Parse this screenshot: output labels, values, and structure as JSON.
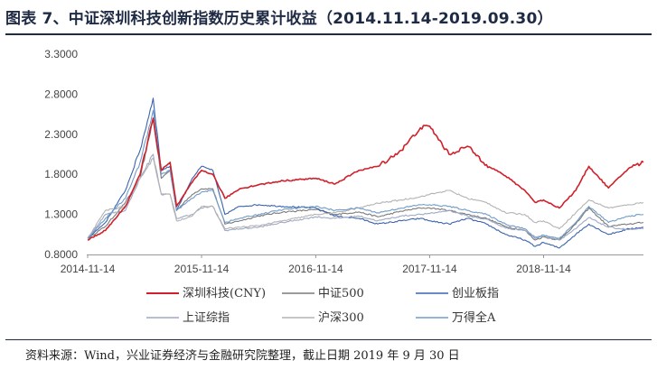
{
  "header": {
    "title": "图表 7、中证深圳科技创新指数历史累计收益（2014.11.14-2019.09.30）"
  },
  "footer": {
    "source": "资料来源：Wind，兴业证券经济与金融研究院整理，截止日期 2019 年 9 月 30 日"
  },
  "chart_data": {
    "type": "line",
    "x_range": [
      "2014-11-14",
      "2019-09-30"
    ],
    "x_ticks": [
      "2014-11-14",
      "2015-11-14",
      "2016-11-14",
      "2017-11-14",
      "2018-11-14"
    ],
    "y_ticks": [
      "3.3000",
      "2.8000",
      "2.3000",
      "1.8000",
      "1.3000",
      "0.8000"
    ],
    "ylim": [
      0.8,
      3.3
    ],
    "legend_position": "bottom",
    "grid": false,
    "series": [
      {
        "name": "深圳科技(CNY)",
        "color": "#d0202a",
        "x": [
          "2014-11-14",
          "2015-01-10",
          "2015-03-15",
          "2015-05-01",
          "2015-06-12",
          "2015-07-08",
          "2015-08-05",
          "2015-08-26",
          "2015-10-15",
          "2015-11-14",
          "2015-12-20",
          "2016-01-28",
          "2016-03-15",
          "2016-05-15",
          "2016-08-01",
          "2016-11-14",
          "2017-01-15",
          "2017-04-01",
          "2017-06-01",
          "2017-08-15",
          "2017-10-15",
          "2017-11-14",
          "2018-01-15",
          "2018-03-15",
          "2018-05-15",
          "2018-07-15",
          "2018-09-15",
          "2018-10-18",
          "2018-11-14",
          "2019-01-03",
          "2019-02-25",
          "2019-04-08",
          "2019-06-10",
          "2019-08-15",
          "2019-09-30"
        ],
        "values": [
          0.98,
          1.1,
          1.4,
          1.8,
          2.5,
          1.85,
          1.95,
          1.4,
          1.7,
          1.85,
          1.8,
          1.5,
          1.62,
          1.67,
          1.72,
          1.75,
          1.68,
          1.85,
          1.9,
          2.1,
          2.38,
          2.4,
          2.05,
          2.15,
          1.92,
          1.78,
          1.6,
          1.45,
          1.48,
          1.38,
          1.6,
          1.9,
          1.63,
          1.88,
          1.95
        ]
      },
      {
        "name": "中证500",
        "color": "#7a7a7a",
        "x": [
          "2014-11-14",
          "2015-01-10",
          "2015-03-15",
          "2015-05-01",
          "2015-06-12",
          "2015-07-08",
          "2015-08-05",
          "2015-08-26",
          "2015-10-15",
          "2015-11-14",
          "2015-12-20",
          "2016-01-28",
          "2016-03-15",
          "2016-05-15",
          "2016-08-01",
          "2016-11-14",
          "2017-01-15",
          "2017-04-01",
          "2017-06-01",
          "2017-08-15",
          "2017-10-15",
          "2017-11-14",
          "2018-01-15",
          "2018-03-15",
          "2018-05-15",
          "2018-07-15",
          "2018-09-15",
          "2018-10-18",
          "2018-11-14",
          "2019-01-03",
          "2019-02-25",
          "2019-04-08",
          "2019-06-10",
          "2019-08-15",
          "2019-09-30"
        ],
        "values": [
          1.0,
          1.15,
          1.45,
          1.75,
          2.5,
          1.75,
          1.85,
          1.35,
          1.55,
          1.62,
          1.62,
          1.18,
          1.22,
          1.28,
          1.33,
          1.36,
          1.3,
          1.33,
          1.27,
          1.34,
          1.38,
          1.38,
          1.35,
          1.3,
          1.25,
          1.15,
          1.1,
          0.98,
          1.02,
          0.98,
          1.18,
          1.38,
          1.15,
          1.18,
          1.2
        ]
      },
      {
        "name": "创业板指",
        "color": "#3a63b0",
        "x": [
          "2014-11-14",
          "2015-01-10",
          "2015-03-15",
          "2015-05-01",
          "2015-06-12",
          "2015-07-08",
          "2015-08-05",
          "2015-08-26",
          "2015-10-15",
          "2015-11-14",
          "2015-12-20",
          "2016-01-28",
          "2016-03-15",
          "2016-05-15",
          "2016-08-01",
          "2016-11-14",
          "2017-01-15",
          "2017-04-01",
          "2017-06-01",
          "2017-08-15",
          "2017-10-15",
          "2017-11-14",
          "2018-01-15",
          "2018-03-15",
          "2018-05-15",
          "2018-07-15",
          "2018-09-15",
          "2018-10-18",
          "2018-11-14",
          "2019-01-03",
          "2019-02-25",
          "2019-04-08",
          "2019-06-10",
          "2019-08-15",
          "2019-09-30"
        ],
        "values": [
          1.0,
          1.2,
          1.6,
          2.1,
          2.75,
          1.85,
          1.9,
          1.35,
          1.75,
          1.9,
          1.85,
          1.3,
          1.4,
          1.42,
          1.4,
          1.38,
          1.28,
          1.25,
          1.18,
          1.22,
          1.25,
          1.22,
          1.18,
          1.25,
          1.18,
          1.05,
          0.98,
          0.9,
          0.95,
          0.88,
          1.05,
          1.18,
          1.05,
          1.12,
          1.14
        ]
      },
      {
        "name": "上证综指",
        "color": "#9fa9c4",
        "x": [
          "2014-11-14",
          "2015-01-10",
          "2015-03-15",
          "2015-05-01",
          "2015-06-12",
          "2015-07-08",
          "2015-08-05",
          "2015-08-26",
          "2015-10-15",
          "2015-11-14",
          "2015-12-20",
          "2016-01-28",
          "2016-03-15",
          "2016-05-15",
          "2016-08-01",
          "2016-11-14",
          "2017-01-15",
          "2017-04-01",
          "2017-06-01",
          "2017-08-15",
          "2017-10-15",
          "2017-11-14",
          "2018-01-15",
          "2018-03-15",
          "2018-05-15",
          "2018-07-15",
          "2018-09-15",
          "2018-10-18",
          "2018-11-14",
          "2019-01-03",
          "2019-02-25",
          "2019-04-08",
          "2019-06-10",
          "2019-08-15",
          "2019-09-30"
        ],
        "values": [
          1.0,
          1.3,
          1.35,
          1.75,
          2.05,
          1.55,
          1.55,
          1.25,
          1.3,
          1.38,
          1.4,
          1.1,
          1.12,
          1.14,
          1.2,
          1.27,
          1.25,
          1.28,
          1.22,
          1.28,
          1.3,
          1.31,
          1.35,
          1.28,
          1.24,
          1.13,
          1.1,
          1.02,
          1.04,
          0.98,
          1.12,
          1.26,
          1.14,
          1.11,
          1.12
        ]
      },
      {
        "name": "沪深300",
        "color": "#b3b3b3",
        "x": [
          "2014-11-14",
          "2015-01-10",
          "2015-03-15",
          "2015-05-01",
          "2015-06-12",
          "2015-07-08",
          "2015-08-05",
          "2015-08-26",
          "2015-10-15",
          "2015-11-14",
          "2015-12-20",
          "2016-01-28",
          "2016-03-15",
          "2016-05-15",
          "2016-08-01",
          "2016-11-14",
          "2017-01-15",
          "2017-04-01",
          "2017-06-01",
          "2017-08-15",
          "2017-10-15",
          "2017-11-14",
          "2018-01-15",
          "2018-03-15",
          "2018-05-15",
          "2018-07-15",
          "2018-09-15",
          "2018-10-18",
          "2018-11-14",
          "2019-01-03",
          "2019-02-25",
          "2019-04-08",
          "2019-06-10",
          "2019-08-15",
          "2019-09-30"
        ],
        "values": [
          1.0,
          1.35,
          1.4,
          1.75,
          2.0,
          1.55,
          1.55,
          1.22,
          1.28,
          1.4,
          1.4,
          1.12,
          1.14,
          1.16,
          1.22,
          1.3,
          1.32,
          1.38,
          1.44,
          1.48,
          1.52,
          1.55,
          1.6,
          1.5,
          1.45,
          1.32,
          1.3,
          1.2,
          1.22,
          1.12,
          1.32,
          1.48,
          1.38,
          1.42,
          1.45
        ]
      },
      {
        "name": "万得全A",
        "color": "#6f9bc9",
        "x": [
          "2014-11-14",
          "2015-01-10",
          "2015-03-15",
          "2015-05-01",
          "2015-06-12",
          "2015-07-08",
          "2015-08-05",
          "2015-08-26",
          "2015-10-15",
          "2015-11-14",
          "2015-12-20",
          "2016-01-28",
          "2016-03-15",
          "2016-05-15",
          "2016-08-01",
          "2016-11-14",
          "2017-01-15",
          "2017-04-01",
          "2017-06-01",
          "2017-08-15",
          "2017-10-15",
          "2017-11-14",
          "2018-01-15",
          "2018-03-15",
          "2018-05-15",
          "2018-07-15",
          "2018-09-15",
          "2018-10-18",
          "2018-11-14",
          "2019-01-03",
          "2019-02-25",
          "2019-04-08",
          "2019-06-10",
          "2019-08-15",
          "2019-09-30"
        ],
        "values": [
          1.0,
          1.25,
          1.5,
          1.95,
          2.6,
          1.8,
          1.85,
          1.35,
          1.5,
          1.58,
          1.6,
          1.2,
          1.25,
          1.3,
          1.36,
          1.4,
          1.35,
          1.38,
          1.32,
          1.38,
          1.42,
          1.42,
          1.4,
          1.35,
          1.3,
          1.18,
          1.12,
          1.0,
          1.04,
          1.0,
          1.2,
          1.4,
          1.2,
          1.28,
          1.3
        ]
      }
    ]
  }
}
